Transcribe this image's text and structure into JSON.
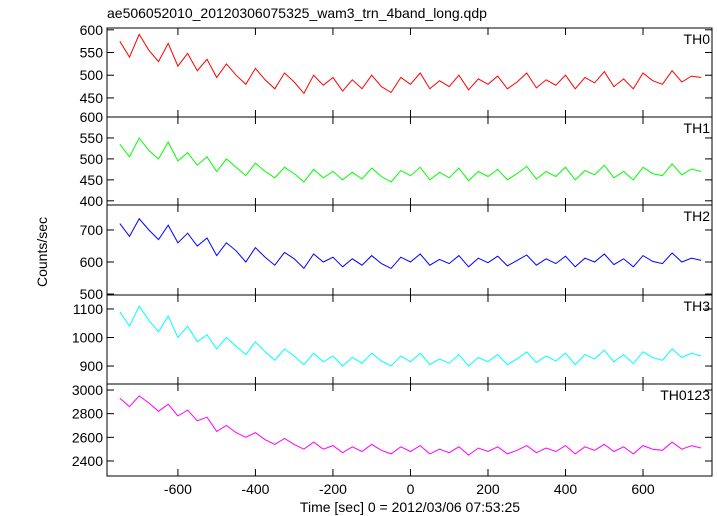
{
  "chart_data": {
    "type": "line",
    "title": "ae506052010_20120306075325_wam3_trn_4band_long.qdp",
    "xlabel": "Time [sec] 0 = 2012/03/06 07:53:25",
    "ylabel": "Counts/sec",
    "xlim": [
      -783,
      778
    ],
    "xticks": [
      -600,
      -400,
      -200,
      0,
      200,
      400,
      600
    ],
    "x": [
      -750,
      -725,
      -700,
      -675,
      -650,
      -625,
      -600,
      -575,
      -550,
      -525,
      -500,
      -475,
      -450,
      -425,
      -400,
      -375,
      -350,
      -325,
      -300,
      -275,
      -250,
      -225,
      -200,
      -175,
      -150,
      -125,
      -100,
      -75,
      -50,
      -25,
      0,
      25,
      50,
      75,
      100,
      125,
      150,
      175,
      200,
      225,
      250,
      275,
      300,
      325,
      350,
      375,
      400,
      425,
      450,
      475,
      500,
      525,
      550,
      575,
      600,
      625,
      650,
      675,
      700,
      725,
      750
    ],
    "series": [
      {
        "name": "TH0",
        "color": "#ff0000",
        "ylim": [
          408,
          604
        ],
        "yticks": [
          450,
          500,
          550,
          600
        ],
        "values": [
          575,
          540,
          590,
          555,
          530,
          570,
          520,
          548,
          510,
          535,
          495,
          525,
          500,
          480,
          515,
          490,
          470,
          505,
          485,
          460,
          500,
          478,
          495,
          465,
          490,
          470,
          500,
          475,
          462,
          495,
          480,
          505,
          470,
          488,
          475,
          500,
          468,
          492,
          480,
          498,
          470,
          485,
          505,
          472,
          490,
          478,
          500,
          470,
          495,
          483,
          508,
          475,
          492,
          470,
          505,
          488,
          480,
          510,
          485,
          498,
          495
        ]
      },
      {
        "name": "TH1",
        "color": "#00ff00",
        "ylim": [
          390,
          600
        ],
        "yticks": [
          400,
          450,
          500,
          550,
          600
        ],
        "values": [
          535,
          505,
          550,
          520,
          500,
          540,
          495,
          515,
          485,
          505,
          470,
          500,
          480,
          460,
          490,
          470,
          455,
          480,
          465,
          445,
          475,
          455,
          470,
          450,
          468,
          452,
          478,
          458,
          445,
          472,
          460,
          480,
          450,
          468,
          455,
          478,
          448,
          470,
          458,
          475,
          450,
          465,
          482,
          452,
          470,
          458,
          480,
          450,
          472,
          462,
          485,
          455,
          470,
          450,
          480,
          465,
          460,
          488,
          462,
          476,
          470
        ]
      },
      {
        "name": "TH2",
        "color": "#0000ff",
        "ylim": [
          497,
          778
        ],
        "yticks": [
          500,
          600,
          700
        ],
        "values": [
          720,
          680,
          735,
          700,
          670,
          715,
          660,
          690,
          650,
          675,
          620,
          660,
          635,
          600,
          645,
          615,
          590,
          630,
          610,
          580,
          625,
          600,
          615,
          585,
          610,
          590,
          620,
          595,
          580,
          615,
          600,
          625,
          590,
          608,
          595,
          620,
          585,
          612,
          598,
          618,
          588,
          605,
          622,
          590,
          610,
          595,
          618,
          585,
          612,
          600,
          625,
          592,
          610,
          585,
          620,
          602,
          595,
          628,
          600,
          612,
          605
        ]
      },
      {
        "name": "TH3",
        "color": "#00ffff",
        "ylim": [
          837,
          1149
        ],
        "yticks": [
          900,
          1000,
          1100
        ],
        "values": [
          1090,
          1040,
          1110,
          1060,
          1020,
          1075,
          1000,
          1040,
          985,
          1010,
          960,
          1000,
          970,
          940,
          985,
          950,
          920,
          960,
          935,
          905,
          945,
          915,
          935,
          900,
          930,
          910,
          945,
          918,
          900,
          935,
          915,
          945,
          905,
          925,
          910,
          940,
          900,
          930,
          915,
          940,
          905,
          925,
          950,
          912,
          935,
          918,
          945,
          905,
          940,
          925,
          955,
          915,
          940,
          908,
          950,
          930,
          920,
          960,
          930,
          945,
          935
        ]
      },
      {
        "name": "TH0123",
        "color": "#ff00ff",
        "ylim": [
          2273,
          3051
        ],
        "yticks": [
          2400,
          2600,
          2800,
          3000
        ],
        "values": [
          2930,
          2860,
          2950,
          2890,
          2820,
          2880,
          2780,
          2830,
          2740,
          2770,
          2650,
          2700,
          2640,
          2600,
          2640,
          2580,
          2540,
          2590,
          2540,
          2500,
          2560,
          2500,
          2530,
          2470,
          2520,
          2480,
          2540,
          2490,
          2460,
          2520,
          2480,
          2530,
          2460,
          2500,
          2470,
          2520,
          2450,
          2510,
          2480,
          2520,
          2460,
          2490,
          2530,
          2470,
          2510,
          2480,
          2530,
          2460,
          2520,
          2490,
          2540,
          2480,
          2520,
          2460,
          2530,
          2500,
          2490,
          2560,
          2500,
          2530,
          2510
        ]
      }
    ]
  }
}
